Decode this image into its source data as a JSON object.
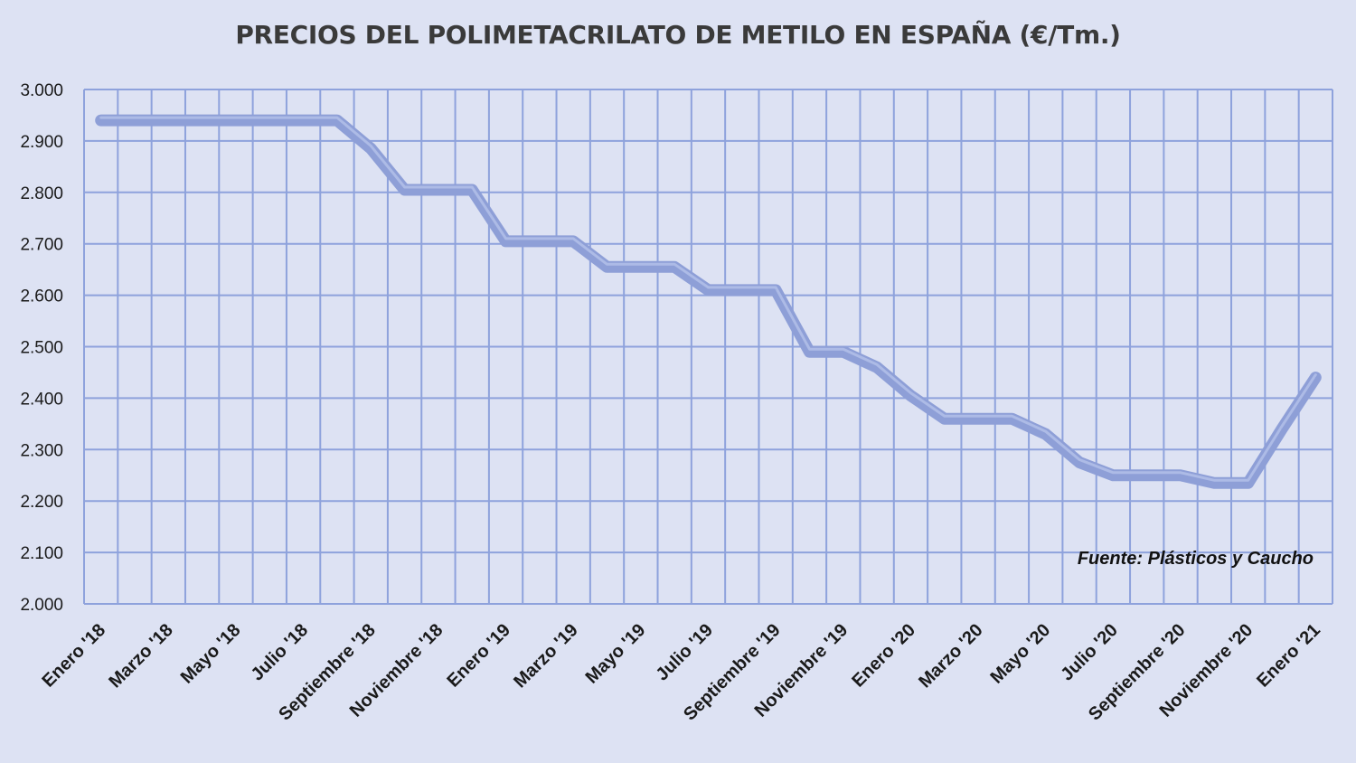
{
  "chart_data": {
    "type": "line",
    "title": "PRECIOS DEL POLIMETACRILATO DE METILO EN ESPAÑA  (€/Tm.)",
    "xlabel": "",
    "ylabel": "",
    "ylim": [
      2000,
      3000
    ],
    "y_ticks": [
      "2.000",
      "2.100",
      "2.200",
      "2.300",
      "2.400",
      "2.500",
      "2.600",
      "2.700",
      "2.800",
      "2.900",
      "3.000"
    ],
    "x_tick_labels": [
      "Enero '18",
      "Marzo '18",
      "Mayo '18",
      "Julio '18",
      "Septiembre '18",
      "Noviembre '18",
      "Enero '19",
      "Marzo '19",
      "Mayo '19",
      "Julio '19",
      "Septiembre '19",
      "Noviembre '19",
      "Enero '20",
      "Marzo '20",
      "Mayo '20",
      "Julio '20",
      "Septiembre '20",
      "Noviembre '20",
      "Enero '21"
    ],
    "x": [
      "Ene 2018",
      "Feb 2018",
      "Mar 2018",
      "Abr 2018",
      "May 2018",
      "Jun 2018",
      "Jul 2018",
      "Ago 2018",
      "Sep 2018",
      "Oct 2018",
      "Nov 2018",
      "Dic 2018",
      "Ene 2019",
      "Feb 2019",
      "Mar 2019",
      "Abr 2019",
      "May 2019",
      "Jun 2019",
      "Jul 2019",
      "Ago 2019",
      "Sep 2019",
      "Oct 2019",
      "Nov 2019",
      "Dic 2019",
      "Ene 2020",
      "Feb 2020",
      "Mar 2020",
      "Abr 2020",
      "May 2020",
      "Jun 2020",
      "Jul 2020",
      "Ago 2020",
      "Sep 2020",
      "Oct 2020",
      "Nov 2020",
      "Dic 2020",
      "Ene 2021"
    ],
    "series": [
      {
        "values": [
          2940,
          2940,
          2940,
          2940,
          2940,
          2940,
          2940,
          2940,
          2885,
          2805,
          2805,
          2805,
          2705,
          2705,
          2705,
          2655,
          2655,
          2655,
          2610,
          2610,
          2610,
          2490,
          2490,
          2460,
          2405,
          2360,
          2360,
          2360,
          2330,
          2275,
          2250,
          2250,
          2250,
          2235,
          2235,
          2340,
          2440
        ]
      }
    ],
    "grid": true,
    "legend": "none",
    "annotation": "Fuente: Plásticos y Caucho",
    "colors": {
      "background": "#dde2f3",
      "line": "#8e9fd7",
      "line_highlight": "#b5c2ea",
      "grid": "#8ea2dc"
    }
  }
}
